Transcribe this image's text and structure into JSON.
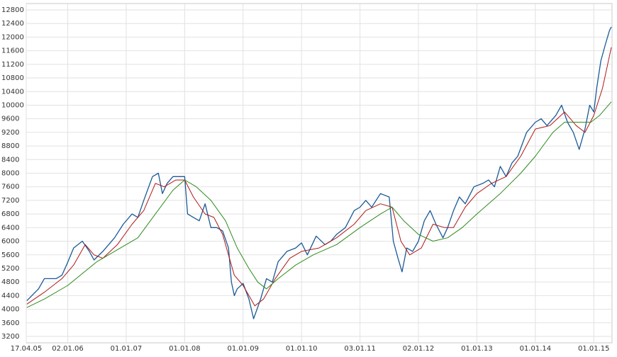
{
  "chart_data": {
    "type": "line",
    "xlim": [
      2005.29,
      2015.3
    ],
    "xticks": [
      {
        "value": 2005.29,
        "label": "17.04.05"
      },
      {
        "value": 2006.0,
        "label": "02.01.06"
      },
      {
        "value": 2007.0,
        "label": "01.01.07"
      },
      {
        "value": 2008.0,
        "label": "01.01.08"
      },
      {
        "value": 2009.0,
        "label": "01.01.09"
      },
      {
        "value": 2010.0,
        "label": "01.01.10"
      },
      {
        "value": 2011.0,
        "label": "03.01.11"
      },
      {
        "value": 2012.0,
        "label": "02.01.12"
      },
      {
        "value": 2013.0,
        "label": "01.01.13"
      },
      {
        "value": 2014.0,
        "label": "01.01.14"
      },
      {
        "value": 2015.0,
        "label": "01.01.15"
      }
    ],
    "ylim": [
      3200,
      12800
    ],
    "yticks": [
      3200,
      3600,
      4000,
      4400,
      4800,
      5200,
      5600,
      6000,
      6400,
      6800,
      7200,
      7600,
      8000,
      8400,
      8800,
      9200,
      9600,
      10000,
      10400,
      10800,
      11200,
      11600,
      12000,
      12400,
      12800
    ],
    "grid": true,
    "series": [
      {
        "color": "#1a5a96",
        "x": [
          2005.3,
          2005.5,
          2005.6,
          2005.8,
          2005.9,
          2006.0,
          2006.1,
          2006.25,
          2006.37,
          2006.45,
          2006.6,
          2006.8,
          2006.95,
          2007.1,
          2007.2,
          2007.3,
          2007.45,
          2007.55,
          2007.62,
          2007.7,
          2007.8,
          2007.9,
          2008.0,
          2008.05,
          2008.15,
          2008.25,
          2008.35,
          2008.45,
          2008.55,
          2008.65,
          2008.75,
          2008.8,
          2008.85,
          2008.9,
          2009.0,
          2009.1,
          2009.18,
          2009.3,
          2009.4,
          2009.5,
          2009.6,
          2009.75,
          2009.9,
          2010.0,
          2010.1,
          2010.25,
          2010.4,
          2010.5,
          2010.6,
          2010.75,
          2010.9,
          2011.0,
          2011.1,
          2011.2,
          2011.35,
          2011.5,
          2011.57,
          2011.65,
          2011.72,
          2011.8,
          2011.9,
          2012.0,
          2012.1,
          2012.2,
          2012.3,
          2012.42,
          2012.5,
          2012.6,
          2012.7,
          2012.8,
          2012.95,
          2013.1,
          2013.2,
          2013.3,
          2013.4,
          2013.5,
          2013.6,
          2013.7,
          2013.85,
          2014.0,
          2014.1,
          2014.2,
          2014.35,
          2014.45,
          2014.55,
          2014.65,
          2014.75,
          2014.85,
          2014.93,
          2015.0,
          2015.05,
          2015.12,
          2015.2,
          2015.27,
          2015.3
        ],
        "values": [
          4250,
          4600,
          4900,
          4900,
          5000,
          5380,
          5800,
          6000,
          5700,
          5450,
          5700,
          6100,
          6500,
          6800,
          6700,
          7200,
          7900,
          8000,
          7400,
          7700,
          7900,
          7900,
          7900,
          6800,
          6700,
          6600,
          7100,
          6400,
          6400,
          6300,
          5800,
          4800,
          4400,
          4600,
          4760,
          4300,
          3720,
          4300,
          4900,
          4800,
          5400,
          5700,
          5800,
          5950,
          5600,
          6150,
          5900,
          6000,
          6200,
          6400,
          6900,
          7000,
          7200,
          7000,
          7400,
          7300,
          6000,
          5500,
          5100,
          5800,
          5700,
          6000,
          6600,
          6900,
          6500,
          6100,
          6400,
          6900,
          7300,
          7100,
          7600,
          7700,
          7800,
          7600,
          8200,
          7900,
          8300,
          8500,
          9200,
          9500,
          9600,
          9400,
          9700,
          10000,
          9500,
          9200,
          8700,
          9300,
          10000,
          9800,
          10500,
          11300,
          11800,
          12200,
          12300
        ]
      },
      {
        "color": "#b01818",
        "x": [
          2005.3,
          2005.6,
          2005.9,
          2006.1,
          2006.3,
          2006.45,
          2006.6,
          2006.85,
          2007.1,
          2007.3,
          2007.5,
          2007.65,
          2007.85,
          2008.0,
          2008.15,
          2008.35,
          2008.5,
          2008.65,
          2008.85,
          2009.0,
          2009.2,
          2009.35,
          2009.55,
          2009.8,
          2010.0,
          2010.3,
          2010.6,
          2010.9,
          2011.1,
          2011.35,
          2011.55,
          2011.7,
          2011.85,
          2012.05,
          2012.25,
          2012.45,
          2012.6,
          2012.8,
          2013.0,
          2013.25,
          2013.5,
          2013.75,
          2014.0,
          2014.25,
          2014.5,
          2014.7,
          2014.85,
          2015.0,
          2015.15,
          2015.3
        ],
        "values": [
          4150,
          4500,
          4900,
          5300,
          5900,
          5600,
          5500,
          5900,
          6500,
          6900,
          7700,
          7600,
          7800,
          7800,
          7300,
          6800,
          6700,
          6200,
          5000,
          4700,
          4100,
          4300,
          4900,
          5500,
          5700,
          5800,
          6100,
          6500,
          6900,
          7100,
          7000,
          6000,
          5600,
          5800,
          6500,
          6400,
          6400,
          7000,
          7400,
          7700,
          7900,
          8500,
          9300,
          9400,
          9800,
          9400,
          9200,
          9700,
          10500,
          11700
        ]
      },
      {
        "color": "#2e8b1e",
        "x": [
          2005.3,
          2005.6,
          2006.0,
          2006.5,
          2006.8,
          2007.2,
          2007.5,
          2007.8,
          2008.0,
          2008.2,
          2008.45,
          2008.7,
          2008.9,
          2009.1,
          2009.25,
          2009.4,
          2009.6,
          2009.9,
          2010.2,
          2010.6,
          2011.0,
          2011.35,
          2011.55,
          2011.75,
          2012.0,
          2012.25,
          2012.5,
          2012.75,
          2013.0,
          2013.4,
          2013.75,
          2014.0,
          2014.3,
          2014.5,
          2014.7,
          2014.95,
          2015.1,
          2015.3
        ],
        "values": [
          4050,
          4300,
          4700,
          5400,
          5700,
          6100,
          6800,
          7500,
          7800,
          7600,
          7200,
          6600,
          5800,
          5200,
          4800,
          4600,
          4900,
          5300,
          5600,
          5900,
          6400,
          6800,
          7000,
          6600,
          6200,
          6000,
          6100,
          6400,
          6800,
          7400,
          8000,
          8500,
          9200,
          9500,
          9500,
          9500,
          9700,
          10100
        ]
      }
    ]
  }
}
